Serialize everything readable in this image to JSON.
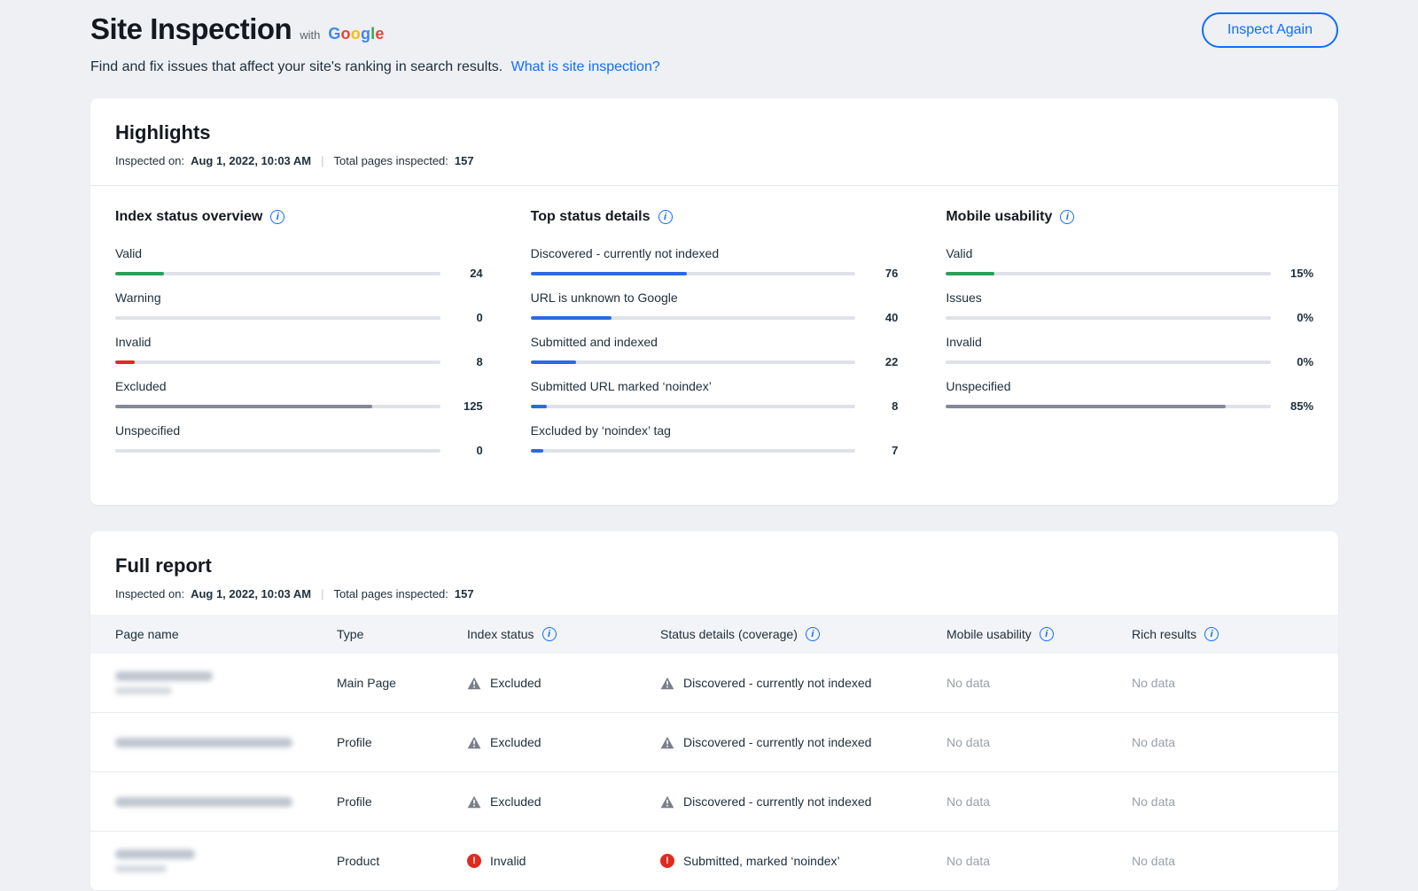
{
  "page": {
    "title": "Site Inspection",
    "with_label": "with",
    "google_letters": [
      {
        "ch": "G",
        "color": "#4285F4"
      },
      {
        "ch": "o",
        "color": "#EA4335"
      },
      {
        "ch": "o",
        "color": "#FBBC05"
      },
      {
        "ch": "g",
        "color": "#4285F4"
      },
      {
        "ch": "l",
        "color": "#34A853"
      },
      {
        "ch": "e",
        "color": "#EA4335"
      }
    ],
    "subtitle": "Find and fix issues that affect your site's ranking in search results.",
    "subtitle_link": "What is site inspection?",
    "inspect_again_label": "Inspect Again"
  },
  "highlights": {
    "title": "Highlights",
    "inspected_on_label": "Inspected on:",
    "inspected_on_value": "Aug 1, 2022, 10:03 AM",
    "meta_divider": "|",
    "total_pages_label": "Total pages inspected:",
    "total_pages_value": "157",
    "columns": [
      {
        "title": "Index status overview",
        "metrics": [
          {
            "label": "Valid",
            "value": "24",
            "fill_pct": 15,
            "color": "#2aa05a"
          },
          {
            "label": "Warning",
            "value": "0",
            "fill_pct": 0,
            "color": "#f5a623"
          },
          {
            "label": "Invalid",
            "value": "8",
            "fill_pct": 6,
            "color": "#e02b20"
          },
          {
            "label": "Excluded",
            "value": "125",
            "fill_pct": 79,
            "color": "#83889b"
          },
          {
            "label": "Unspecified",
            "value": "0",
            "fill_pct": 0,
            "color": "#83889b"
          }
        ]
      },
      {
        "title": "Top status details",
        "metrics": [
          {
            "label": "Discovered - currently not indexed",
            "value": "76",
            "fill_pct": 48,
            "color": "#2a6ae3"
          },
          {
            "label": "URL is unknown to Google",
            "value": "40",
            "fill_pct": 25,
            "color": "#2a6ae3"
          },
          {
            "label": "Submitted and indexed",
            "value": "22",
            "fill_pct": 14,
            "color": "#2a6ae3"
          },
          {
            "label": "Submitted URL marked ‘noindex’",
            "value": "8",
            "fill_pct": 5,
            "color": "#2a6ae3"
          },
          {
            "label": "Excluded by ‘noindex’ tag",
            "value": "7",
            "fill_pct": 4,
            "color": "#2a6ae3"
          }
        ]
      },
      {
        "title": "Mobile usability",
        "metrics": [
          {
            "label": "Valid",
            "value": "15%",
            "fill_pct": 15,
            "color": "#2aa05a"
          },
          {
            "label": "Issues",
            "value": "0%",
            "fill_pct": 0,
            "color": "#e02b20"
          },
          {
            "label": "Invalid",
            "value": "0%",
            "fill_pct": 0,
            "color": "#e02b20"
          },
          {
            "label": "Unspecified",
            "value": "85%",
            "fill_pct": 86,
            "color": "#83889b"
          }
        ]
      }
    ]
  },
  "full_report": {
    "title": "Full report",
    "inspected_on_label": "Inspected on:",
    "inspected_on_value": "Aug 1, 2022, 10:03 AM",
    "meta_divider": "|",
    "total_pages_label": "Total pages inspected:",
    "total_pages_value": "157",
    "table": {
      "headers": [
        {
          "label": "Page name",
          "info": false
        },
        {
          "label": "Type",
          "info": false
        },
        {
          "label": "Index status",
          "info": true
        },
        {
          "label": "Status details (coverage)",
          "info": true
        },
        {
          "label": "Mobile usability",
          "info": true
        },
        {
          "label": "Rich results",
          "info": true
        }
      ],
      "rows": [
        {
          "name_redacted_widths": [
            110,
            64
          ],
          "type": "Main Page",
          "index_status": {
            "icon": "warning",
            "label": "Excluded"
          },
          "status_details": {
            "icon": "warning",
            "label": "Discovered - currently not indexed"
          },
          "mobile_usability": "No data",
          "rich_results": "No data"
        },
        {
          "name_redacted_widths": [
            200
          ],
          "type": "Profile",
          "index_status": {
            "icon": "warning",
            "label": "Excluded"
          },
          "status_details": {
            "icon": "warning",
            "label": "Discovered - currently not indexed"
          },
          "mobile_usability": "No data",
          "rich_results": "No data"
        },
        {
          "name_redacted_widths": [
            200
          ],
          "type": "Profile",
          "index_status": {
            "icon": "warning",
            "label": "Excluded"
          },
          "status_details": {
            "icon": "warning",
            "label": "Discovered - currently not indexed"
          },
          "mobile_usability": "No data",
          "rich_results": "No data"
        },
        {
          "name_redacted_widths": [
            90,
            58
          ],
          "type": "Product",
          "index_status": {
            "icon": "error",
            "label": "Invalid"
          },
          "status_details": {
            "icon": "error",
            "label": "Submitted, marked ‘noindex’"
          },
          "mobile_usability": "No data",
          "rich_results": "No data"
        }
      ]
    }
  },
  "colors": {
    "accent_blue": "#116dff",
    "green": "#2aa05a",
    "red": "#e02b20",
    "gray_bar": "#83889b",
    "bar_track": "#dfe2e8",
    "warning_icon_gray": "#7a7f8a"
  }
}
